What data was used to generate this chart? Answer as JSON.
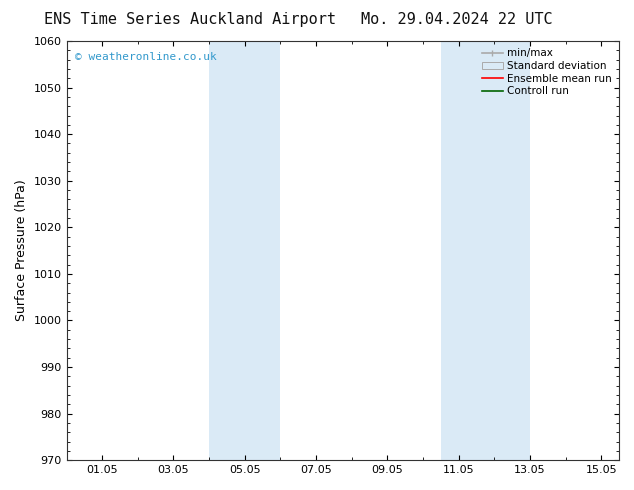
{
  "title_left": "ENS Time Series Auckland Airport",
  "title_right": "Mo. 29.04.2024 22 UTC",
  "ylabel": "Surface Pressure (hPa)",
  "ylim": [
    970,
    1060
  ],
  "yticks": [
    970,
    980,
    990,
    1000,
    1010,
    1020,
    1030,
    1040,
    1050,
    1060
  ],
  "xlim": [
    0.0,
    15.5
  ],
  "xtick_positions": [
    1.0,
    3.0,
    5.0,
    7.0,
    9.0,
    11.0,
    13.0,
    15.0
  ],
  "xtick_labels": [
    "01.05",
    "03.05",
    "05.05",
    "07.05",
    "09.05",
    "11.05",
    "13.05",
    "15.05"
  ],
  "shaded_bands": [
    {
      "xmin": 4.0,
      "xmax": 6.0
    },
    {
      "xmin": 10.5,
      "xmax": 13.0
    }
  ],
  "shade_color": "#daeaf6",
  "watermark_text": "© weatheronline.co.uk",
  "watermark_color": "#3399cc",
  "legend_labels": [
    "min/max",
    "Standard deviation",
    "Ensemble mean run",
    "Controll run"
  ],
  "background_color": "#ffffff",
  "title_fontsize": 11,
  "axis_label_fontsize": 9,
  "tick_fontsize": 8,
  "watermark_fontsize": 8
}
